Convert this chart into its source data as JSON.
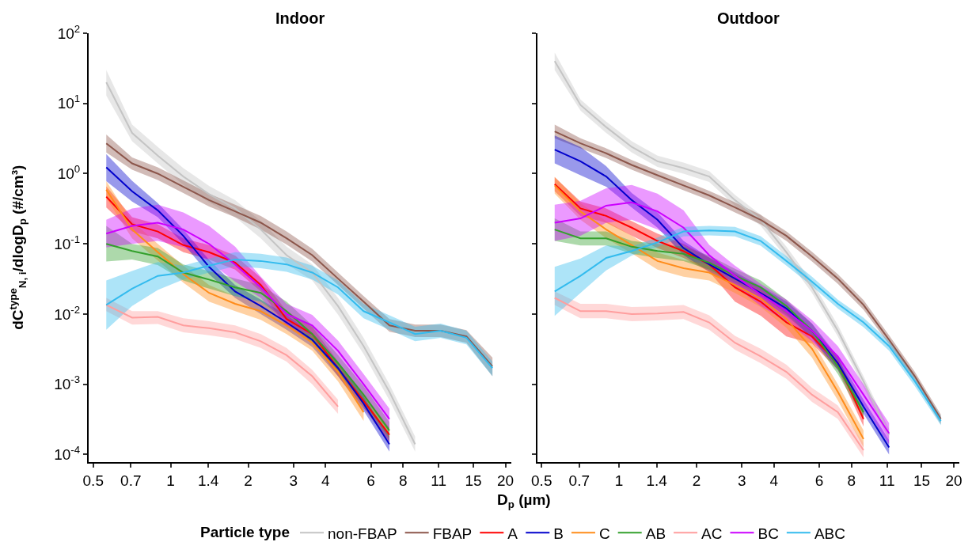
{
  "chart_data": [
    {
      "type": "line",
      "title": "Indoor",
      "xlabel": "D$_{p}$ (µm)",
      "ylabel": "dC$^{type}$$_{N, i}$/dlogD$_{p}$ (#/cm³)",
      "legend_title": "Particle type",
      "legend": "bottom",
      "log": "xy",
      "x": [
        0.562,
        0.708,
        0.891,
        1.12,
        1.41,
        1.78,
        2.24,
        2.82,
        3.55,
        4.47,
        5.62,
        7.08,
        8.91,
        11.2,
        14.1,
        17.8
      ],
      "xlim": [
        0.48,
        21
      ],
      "ylim": [
        7.8e-05,
        100
      ],
      "xticks": [
        0.5,
        0.7,
        1,
        1.4,
        2,
        3,
        4,
        6,
        8,
        11,
        15,
        20
      ],
      "yticks": [
        {
          "value": 0.0001,
          "label": "10$^{-4}$"
        },
        {
          "value": 0.001,
          "label": "10$^{-3}$"
        },
        {
          "value": 0.01,
          "label": "10$^{-2}$"
        },
        {
          "value": 0.1,
          "label": "10$^{-1}$"
        },
        {
          "value": 1,
          "label": "10$^{0}$"
        },
        {
          "value": 10,
          "label": "10$^{1}$"
        },
        {
          "value": 100,
          "label": "10$^{2}$"
        }
      ],
      "series": [
        {
          "name": "non-FBAP",
          "color": "#c4c4c4",
          "values": [
            20,
            3.8,
            1.8,
            0.91,
            0.51,
            0.32,
            0.16,
            0.069,
            0.039,
            0.013,
            0.0035,
            0.00078,
            0.00014,
            null,
            null,
            null
          ],
          "lower": [
            13,
            2.9,
            1.4,
            0.69,
            0.39,
            0.24,
            0.12,
            0.052,
            0.03,
            0.0098,
            0.0027,
            0.00059,
            0.00011,
            null,
            null,
            null
          ],
          "upper": [
            30,
            5.0,
            2.4,
            1.2,
            0.67,
            0.42,
            0.21,
            0.091,
            0.051,
            0.017,
            0.0046,
            0.001,
            0.00018,
            null,
            null,
            null
          ]
        },
        {
          "name": "FBAP",
          "color": "#8c564b",
          "values": [
            2.7,
            1.4,
            1.0,
            0.65,
            0.42,
            0.29,
            0.2,
            0.12,
            0.069,
            0.032,
            0.015,
            0.0069,
            0.0058,
            0.0058,
            0.0048,
            0.0018
          ],
          "lower": [
            2.0,
            1.14,
            0.81,
            0.53,
            0.34,
            0.24,
            0.16,
            0.098,
            0.056,
            0.026,
            0.012,
            0.0056,
            0.0047,
            0.0047,
            0.0039,
            0.0013
          ],
          "upper": [
            3.6,
            1.7,
            1.23,
            0.8,
            0.52,
            0.36,
            0.25,
            0.15,
            0.085,
            0.039,
            0.018,
            0.0085,
            0.0071,
            0.0071,
            0.0059,
            0.0024
          ]
        },
        {
          "name": "A",
          "color": "#ff0000",
          "values": [
            0.47,
            0.19,
            0.15,
            0.096,
            0.076,
            0.054,
            0.026,
            0.0085,
            0.0052,
            0.0017,
            0.00058,
            0.00019,
            null,
            null,
            null,
            null
          ],
          "lower": [
            0.33,
            0.15,
            0.12,
            0.076,
            0.06,
            0.043,
            0.021,
            0.0067,
            0.0041,
            0.0013,
            0.00046,
            0.00015,
            null,
            null,
            null,
            null
          ],
          "upper": [
            0.66,
            0.24,
            0.19,
            0.12,
            0.096,
            0.068,
            0.033,
            0.011,
            0.0066,
            0.0021,
            0.00073,
            0.00024,
            null,
            null,
            null,
            null
          ]
        },
        {
          "name": "B",
          "color": "#0000cc",
          "values": [
            1.23,
            0.56,
            0.3,
            0.13,
            0.047,
            0.021,
            0.013,
            0.0076,
            0.0043,
            0.0017,
            0.00053,
            0.00014,
            null,
            null,
            null,
            null
          ],
          "lower": [
            0.78,
            0.4,
            0.24,
            0.1,
            0.037,
            0.017,
            0.01,
            0.006,
            0.0034,
            0.0013,
            0.00042,
            0.00011,
            null,
            null,
            null,
            null
          ],
          "upper": [
            1.9,
            0.79,
            0.38,
            0.16,
            0.059,
            0.026,
            0.016,
            0.0096,
            0.0054,
            0.0021,
            0.00067,
            0.00018,
            null,
            null,
            null,
            null
          ]
        },
        {
          "name": "C",
          "color": "#ff8c1a",
          "values": [
            0.59,
            0.16,
            0.076,
            0.037,
            0.02,
            0.014,
            0.011,
            0.0069,
            0.0039,
            0.0015,
            0.0004,
            null,
            null,
            null,
            null,
            null
          ],
          "lower": [
            0.45,
            0.12,
            0.058,
            0.028,
            0.015,
            0.011,
            0.0083,
            0.0052,
            0.003,
            0.0011,
            0.0003,
            null,
            null,
            null,
            null,
            null
          ],
          "upper": [
            0.78,
            0.21,
            0.1,
            0.049,
            0.026,
            0.018,
            0.015,
            0.0091,
            0.0051,
            0.002,
            0.00053,
            null,
            null,
            null,
            null,
            null
          ]
        },
        {
          "name": "AB",
          "color": "#33a02c",
          "values": [
            0.1,
            0.079,
            0.066,
            0.039,
            0.031,
            0.024,
            0.02,
            0.011,
            0.0052,
            0.002,
            0.00071,
            0.00022,
            null,
            null,
            null,
            null
          ],
          "lower": [
            0.056,
            0.06,
            0.05,
            0.03,
            0.023,
            0.018,
            0.015,
            0.0083,
            0.0039,
            0.0015,
            0.00054,
            0.00017,
            null,
            null,
            null,
            null
          ],
          "upper": [
            0.18,
            0.1,
            0.087,
            0.051,
            0.041,
            0.032,
            0.026,
            0.015,
            0.0069,
            0.0026,
            0.00094,
            0.00029,
            null,
            null,
            null,
            null
          ]
        },
        {
          "name": "AC",
          "color": "#ff9e9e",
          "values": [
            0.0135,
            0.0089,
            0.0091,
            0.0069,
            0.0063,
            0.0055,
            0.0041,
            0.0026,
            0.0013,
            0.00048,
            null,
            null,
            null,
            null,
            null,
            null
          ],
          "lower": [
            0.011,
            0.0071,
            0.0072,
            0.0055,
            0.005,
            0.0044,
            0.0033,
            0.0021,
            0.001,
            0.00038,
            null,
            null,
            null,
            null,
            null,
            null
          ],
          "upper": [
            0.017,
            0.011,
            0.011,
            0.0087,
            0.0079,
            0.0069,
            0.0052,
            0.0033,
            0.0016,
            0.0006,
            null,
            null,
            null,
            null,
            null,
            null
          ]
        },
        {
          "name": "BC",
          "color": "#cc00ff",
          "values": [
            0.14,
            0.18,
            0.2,
            0.16,
            0.1,
            0.051,
            0.024,
            0.01,
            0.0069,
            0.003,
            0.001,
            0.00032,
            null,
            null,
            null,
            null
          ],
          "lower": [
            0.089,
            0.1,
            0.11,
            0.09,
            0.056,
            0.029,
            0.017,
            0.0071,
            0.0049,
            0.0021,
            0.00071,
            0.00023,
            null,
            null,
            null,
            null
          ],
          "upper": [
            0.22,
            0.32,
            0.36,
            0.28,
            0.18,
            0.091,
            0.034,
            0.014,
            0.0097,
            0.0042,
            0.0014,
            0.00045,
            null,
            null,
            null,
            null
          ]
        },
        {
          "name": "ABC",
          "color": "#33bbee",
          "values": [
            0.0135,
            0.023,
            0.035,
            0.039,
            0.049,
            0.06,
            0.057,
            0.051,
            0.039,
            0.024,
            0.011,
            0.0076,
            0.0052,
            0.0058,
            0.0046,
            0.0017
          ],
          "lower": [
            0.006,
            0.013,
            0.022,
            0.031,
            0.039,
            0.048,
            0.045,
            0.04,
            0.031,
            0.019,
            0.0087,
            0.006,
            0.0041,
            0.0046,
            0.0037,
            0.0013
          ],
          "upper": [
            0.03,
            0.041,
            0.055,
            0.049,
            0.062,
            0.076,
            0.072,
            0.064,
            0.049,
            0.03,
            0.014,
            0.0096,
            0.0066,
            0.0073,
            0.0058,
            0.0021
          ]
        }
      ]
    },
    {
      "type": "line",
      "title": "Outdoor",
      "log": "xy",
      "tick_labels": "x",
      "x": [
        0.562,
        0.708,
        0.891,
        1.12,
        1.41,
        1.78,
        2.24,
        2.82,
        3.55,
        4.47,
        5.62,
        7.08,
        8.91,
        11.2,
        14.1,
        17.8
      ],
      "xlim": [
        0.48,
        21
      ],
      "ylim": [
        7.8e-05,
        100
      ],
      "xticks": [
        0.5,
        0.7,
        1,
        1.4,
        2,
        3,
        4,
        6,
        8,
        11,
        15,
        20
      ],
      "yticks": [
        0.0001,
        0.001,
        0.01,
        0.1,
        1,
        10,
        100
      ],
      "series": [
        {
          "color": "#c4c4c4",
          "values": [
            40,
            9.5,
            4.6,
            2.4,
            1.5,
            1.2,
            0.91,
            0.42,
            0.22,
            0.076,
            0.024,
            0.0058,
            0.0011,
            0.00019,
            null,
            null
          ],
          "lower": [
            30,
            7.9,
            3.8,
            2.0,
            1.25,
            1.0,
            0.76,
            0.35,
            0.18,
            0.063,
            0.02,
            0.0048,
            0.00092,
            0.00016,
            null,
            null
          ],
          "upper": [
            53,
            11.4,
            5.5,
            2.9,
            1.8,
            1.44,
            1.09,
            0.5,
            0.26,
            0.091,
            0.029,
            0.007,
            0.0013,
            0.00023,
            null,
            null
          ]
        },
        {
          "color": "#8c564b",
          "values": [
            4.0,
            2.7,
            1.95,
            1.33,
            0.95,
            0.68,
            0.49,
            0.33,
            0.22,
            0.13,
            0.066,
            0.032,
            0.0135,
            0.0043,
            0.0013,
            0.00032
          ],
          "lower": [
            3.2,
            2.3,
            1.67,
            1.14,
            0.81,
            0.58,
            0.42,
            0.28,
            0.19,
            0.11,
            0.056,
            0.027,
            0.0115,
            0.0037,
            0.0011,
            0.00027
          ],
          "upper": [
            5.0,
            3.2,
            2.3,
            1.56,
            1.11,
            0.8,
            0.57,
            0.39,
            0.26,
            0.15,
            0.077,
            0.037,
            0.0158,
            0.005,
            0.0015,
            0.00037
          ]
        },
        {
          "color": "#ff0000",
          "values": [
            0.71,
            0.32,
            0.25,
            0.17,
            0.11,
            0.079,
            0.051,
            0.024,
            0.015,
            0.0076,
            0.0048,
            0.002,
            0.00032,
            null,
            null,
            null
          ],
          "lower": [
            0.56,
            0.25,
            0.2,
            0.13,
            0.087,
            0.063,
            0.04,
            0.015,
            0.0095,
            0.0048,
            0.0038,
            0.0016,
            0.00025,
            null,
            null,
            null
          ],
          "upper": [
            0.89,
            0.4,
            0.32,
            0.21,
            0.14,
            0.1,
            0.064,
            0.038,
            0.024,
            0.012,
            0.006,
            0.0025,
            0.0004,
            null,
            null,
            null
          ]
        },
        {
          "color": "#0000cc",
          "values": [
            2.2,
            1.5,
            0.91,
            0.42,
            0.22,
            0.087,
            0.051,
            0.032,
            0.02,
            0.012,
            0.0058,
            0.002,
            0.00048,
            0.000126,
            null,
            null
          ],
          "lower": [
            1.4,
            0.95,
            0.65,
            0.33,
            0.17,
            0.069,
            0.04,
            0.025,
            0.016,
            0.0095,
            0.0046,
            0.0016,
            0.00038,
            0.0001,
            null,
            null
          ],
          "upper": [
            3.5,
            2.4,
            1.28,
            0.53,
            0.28,
            0.11,
            0.064,
            0.04,
            0.025,
            0.015,
            0.0073,
            0.0025,
            0.0006,
            0.00016,
            null,
            null
          ]
        },
        {
          "color": "#ff8c1a",
          "values": [
            0.68,
            0.29,
            0.16,
            0.096,
            0.057,
            0.045,
            0.039,
            0.026,
            0.0166,
            0.0085,
            0.0032,
            0.00078,
            0.000166,
            null,
            null,
            null
          ],
          "lower": [
            0.52,
            0.22,
            0.12,
            0.073,
            0.043,
            0.034,
            0.03,
            0.02,
            0.0126,
            0.0064,
            0.0024,
            0.00059,
            0.000126,
            null,
            null,
            null
          ],
          "upper": [
            0.9,
            0.38,
            0.21,
            0.13,
            0.075,
            0.059,
            0.051,
            0.034,
            0.022,
            0.011,
            0.0042,
            0.001,
            0.00022,
            null,
            null,
            null
          ]
        },
        {
          "color": "#33a02c",
          "values": [
            0.16,
            0.12,
            0.12,
            0.091,
            0.079,
            0.072,
            0.054,
            0.035,
            0.024,
            0.013,
            0.0058,
            0.0018,
            0.0004,
            null,
            null,
            null
          ],
          "lower": [
            0.11,
            0.095,
            0.095,
            0.072,
            0.063,
            0.057,
            0.043,
            0.028,
            0.019,
            0.01,
            0.0046,
            0.0014,
            0.00032,
            null,
            null,
            null
          ],
          "upper": [
            0.23,
            0.15,
            0.15,
            0.11,
            0.1,
            0.091,
            0.068,
            0.044,
            0.03,
            0.016,
            0.0073,
            0.0023,
            0.0005,
            null,
            null,
            null
          ]
        },
        {
          "color": "#ff9e9e",
          "values": [
            0.017,
            0.011,
            0.011,
            0.01,
            0.0102,
            0.0107,
            0.0076,
            0.0039,
            0.0025,
            0.0015,
            0.00071,
            0.0004,
            0.000115,
            null,
            null,
            null
          ],
          "lower": [
            0.0135,
            0.0087,
            0.0087,
            0.0079,
            0.0081,
            0.0085,
            0.006,
            0.0031,
            0.002,
            0.0012,
            0.00056,
            0.00032,
            9.1e-05,
            null,
            null,
            null
          ],
          "upper": [
            0.021,
            0.014,
            0.014,
            0.0126,
            0.0129,
            0.0135,
            0.0096,
            0.0049,
            0.0032,
            0.0019,
            0.00089,
            0.0005,
            0.000145,
            null,
            null,
            null
          ]
        },
        {
          "color": "#cc00ff",
          "values": [
            0.2,
            0.23,
            0.35,
            0.39,
            0.29,
            0.17,
            0.069,
            0.035,
            0.019,
            0.011,
            0.0058,
            0.0025,
            0.00071,
            0.0002,
            null,
            null
          ],
          "lower": [
            0.11,
            0.13,
            0.2,
            0.22,
            0.16,
            0.096,
            0.049,
            0.025,
            0.013,
            0.0078,
            0.0041,
            0.0018,
            0.0005,
            0.00014,
            null,
            null
          ],
          "upper": [
            0.36,
            0.41,
            0.62,
            0.69,
            0.52,
            0.3,
            0.097,
            0.049,
            0.027,
            0.016,
            0.0082,
            0.0035,
            0.001,
            0.00028,
            null,
            null
          ]
        },
        {
          "color": "#33bbee",
          "values": [
            0.021,
            0.035,
            0.063,
            0.079,
            0.105,
            0.15,
            0.155,
            0.15,
            0.11,
            0.057,
            0.029,
            0.014,
            0.0076,
            0.0035,
            0.0011,
            0.0003
          ],
          "lower": [
            0.0094,
            0.02,
            0.042,
            0.068,
            0.09,
            0.128,
            0.132,
            0.128,
            0.094,
            0.049,
            0.025,
            0.012,
            0.0065,
            0.003,
            0.00094,
            0.00026
          ],
          "upper": [
            0.047,
            0.062,
            0.095,
            0.092,
            0.123,
            0.175,
            0.18,
            0.175,
            0.129,
            0.067,
            0.034,
            0.016,
            0.0089,
            0.0041,
            0.0013,
            0.00035
          ]
        }
      ]
    }
  ]
}
